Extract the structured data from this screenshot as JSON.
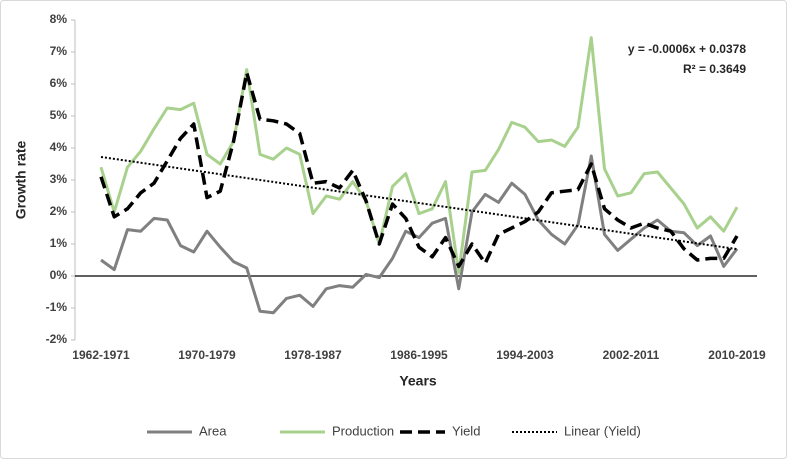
{
  "chart_data": {
    "type": "line",
    "x_label": "Years",
    "y_label": "Growth rate",
    "annotations": [
      "y = -0.0006x + 0.0378",
      "R² = 0.3649"
    ],
    "categories": [
      "1962-1971",
      null,
      null,
      null,
      null,
      null,
      null,
      null,
      "1970-1979",
      null,
      null,
      null,
      null,
      null,
      null,
      null,
      "1978-1987",
      null,
      null,
      null,
      null,
      null,
      null,
      null,
      "1986-1995",
      null,
      null,
      null,
      null,
      null,
      null,
      null,
      "1994-2003",
      null,
      null,
      null,
      null,
      null,
      null,
      null,
      "2002-2011",
      null,
      null,
      null,
      null,
      null,
      null,
      null,
      "2010-2019"
    ],
    "ylim": [
      -2,
      8
    ],
    "yticks": [
      {
        "value": -2,
        "label": "-2%"
      },
      {
        "value": -1,
        "label": "-1%"
      },
      {
        "value": 0,
        "label": "0%"
      },
      {
        "value": 1,
        "label": "1%"
      },
      {
        "value": 2,
        "label": "2%"
      },
      {
        "value": 3,
        "label": "3%"
      },
      {
        "value": 4,
        "label": "4%"
      },
      {
        "value": 5,
        "label": "5%"
      },
      {
        "value": 6,
        "label": "6%"
      },
      {
        "value": 7,
        "label": "7%"
      },
      {
        "value": 8,
        "label": "8%"
      }
    ],
    "legend": "bottom",
    "series": [
      {
        "name": "Area",
        "color": "#808080",
        "dash": "solid",
        "values": [
          0.5,
          0.2,
          1.45,
          1.4,
          1.8,
          1.75,
          0.95,
          0.75,
          1.4,
          0.9,
          0.45,
          0.25,
          -1.1,
          -1.15,
          -0.7,
          -0.6,
          -0.95,
          -0.4,
          -0.3,
          -0.35,
          0.05,
          -0.05,
          0.55,
          1.4,
          1.2,
          1.65,
          1.8,
          -0.4,
          2.0,
          2.55,
          2.3,
          2.9,
          2.55,
          1.75,
          1.3,
          1.0,
          1.6,
          3.75,
          1.3,
          0.8,
          1.15,
          1.5,
          1.75,
          1.4,
          1.35,
          0.95,
          1.25,
          0.3,
          0.85
        ]
      },
      {
        "name": "Production",
        "color": "#a9d18e",
        "dash": "solid",
        "values": [
          3.4,
          2.0,
          3.4,
          3.9,
          4.6,
          5.25,
          5.2,
          5.4,
          3.8,
          3.5,
          4.2,
          6.45,
          3.8,
          3.65,
          4.0,
          3.8,
          1.95,
          2.5,
          2.4,
          2.95,
          2.35,
          1.0,
          2.8,
          3.2,
          1.95,
          2.1,
          2.95,
          0.1,
          3.25,
          3.3,
          3.95,
          4.8,
          4.65,
          4.2,
          4.25,
          4.05,
          4.65,
          7.45,
          3.35,
          2.5,
          2.6,
          3.2,
          3.25,
          2.75,
          2.25,
          1.5,
          1.85,
          1.4,
          2.15
        ]
      },
      {
        "name": "Yield",
        "color": "#000000",
        "dash": "dashed",
        "values": [
          3.1,
          1.85,
          2.1,
          2.6,
          2.9,
          3.6,
          4.3,
          4.75,
          2.45,
          2.65,
          4.2,
          6.35,
          4.9,
          4.85,
          4.75,
          4.45,
          2.9,
          2.95,
          2.75,
          3.3,
          2.35,
          1.0,
          2.25,
          1.8,
          0.9,
          0.6,
          1.2,
          0.3,
          1.0,
          0.4,
          1.3,
          1.5,
          1.7,
          2.0,
          2.6,
          2.65,
          2.7,
          3.5,
          2.1,
          1.75,
          1.5,
          1.65,
          1.5,
          1.4,
          0.85,
          0.5,
          0.55,
          0.55,
          1.25
        ]
      },
      {
        "name": "Linear (Yield)",
        "color": "#000000",
        "dash": "dotted",
        "values": [
          3.72,
          3.66,
          3.6,
          3.54,
          3.48,
          3.42,
          3.36,
          3.3,
          3.24,
          3.18,
          3.12,
          3.06,
          3.0,
          2.94,
          2.88,
          2.82,
          2.76,
          2.7,
          2.64,
          2.58,
          2.52,
          2.46,
          2.4,
          2.34,
          2.28,
          2.22,
          2.16,
          2.1,
          2.04,
          1.98,
          1.92,
          1.86,
          1.8,
          1.74,
          1.68,
          1.62,
          1.56,
          1.5,
          1.44,
          1.38,
          1.32,
          1.26,
          1.2,
          1.14,
          1.08,
          1.02,
          0.96,
          0.9,
          0.84
        ]
      }
    ]
  }
}
